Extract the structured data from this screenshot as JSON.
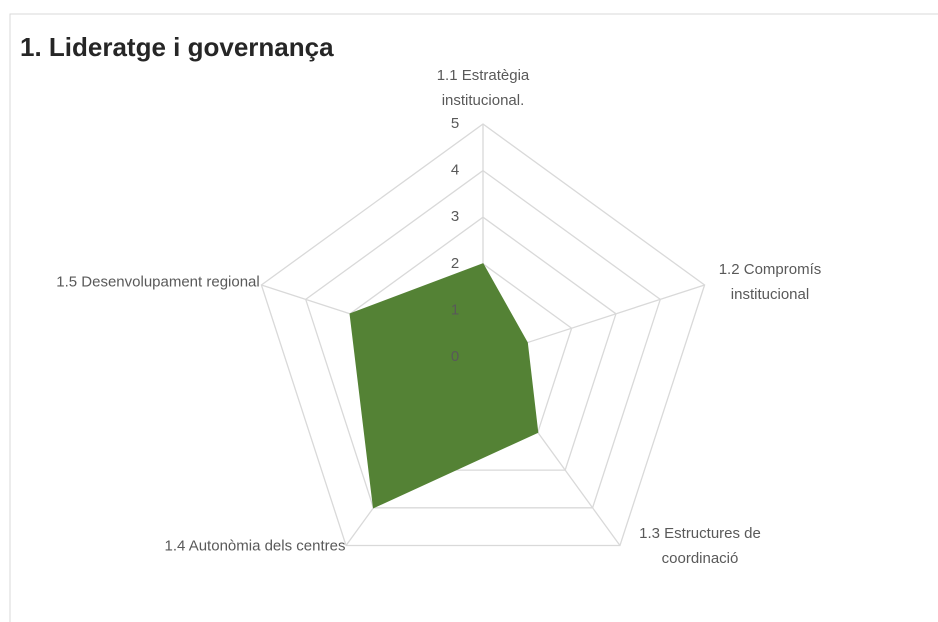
{
  "chart_data": {
    "type": "radar",
    "title": "1. Lideratge i governança",
    "categories": [
      "1.1 Estratègia institucional.",
      "1.2 Compromís institucional",
      "1.3 Estructures de coordinació",
      "1.4 Autonòmia dels centres",
      "1.5 Desenvolupament regional"
    ],
    "values": [
      2,
      1,
      2,
      4,
      3
    ],
    "color": "#548235",
    "ylim": [
      0,
      5
    ],
    "yticks": [
      0,
      1,
      2,
      3,
      4,
      5
    ],
    "grid": true
  }
}
